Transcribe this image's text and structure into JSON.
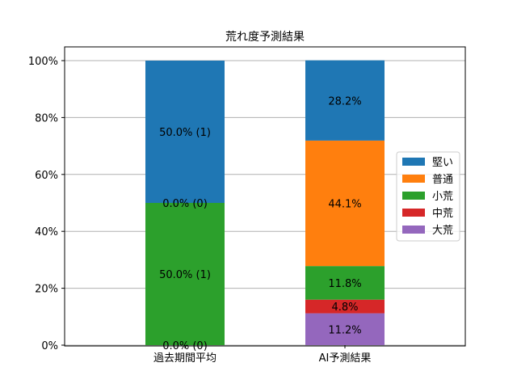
{
  "chart_data": {
    "type": "bar",
    "stacked": true,
    "title": "荒れ度予測結果",
    "categories": [
      "過去期間平均",
      "AI予測結果"
    ],
    "ylim": [
      0,
      100
    ],
    "yticks": [
      "0%",
      "20%",
      "40%",
      "60%",
      "80%",
      "100%"
    ],
    "grid": true,
    "legend_position": "right",
    "series": [
      {
        "name": "大荒",
        "color": "#9467bd",
        "values": [
          0.0,
          11.2
        ],
        "labels": [
          "0.0% (0)",
          "11.2%"
        ]
      },
      {
        "name": "中荒",
        "color": "#d62728",
        "values": [
          0.0,
          4.8
        ],
        "labels": [
          "",
          "4.8%"
        ]
      },
      {
        "name": "小荒",
        "color": "#2ca02c",
        "values": [
          50.0,
          11.8
        ],
        "labels": [
          "50.0% (1)",
          "11.8%"
        ]
      },
      {
        "name": "普通",
        "color": "#ff7f0e",
        "values": [
          0.0,
          44.1
        ],
        "labels": [
          "0.0% (0)",
          "44.1%"
        ]
      },
      {
        "name": "堅い",
        "color": "#1f77b4",
        "values": [
          50.0,
          28.2
        ],
        "labels": [
          "50.0% (1)",
          "28.2%"
        ]
      }
    ],
    "legend_order": [
      "堅い",
      "普通",
      "小荒",
      "中荒",
      "大荒"
    ]
  }
}
